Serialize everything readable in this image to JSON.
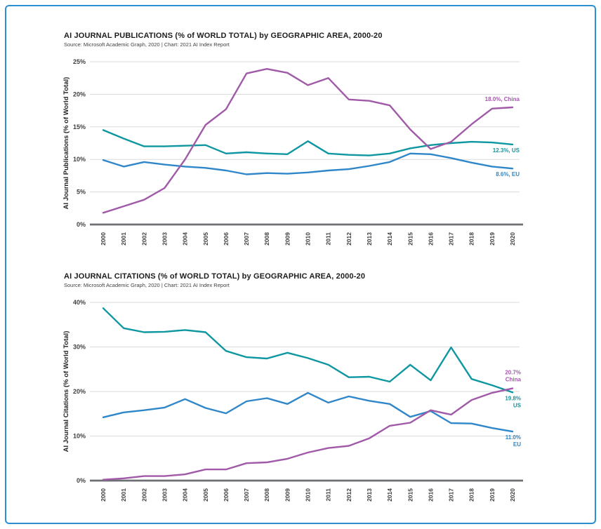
{
  "page": {
    "background": "#ffffff",
    "border_color": "#2b8fd0"
  },
  "chart_data": [
    {
      "type": "line",
      "title": "AI JOURNAL PUBLICATIONS (% of WORLD TOTAL) by GEOGRAPHIC AREA, 2000-20",
      "source": "Source: Microsoft Academic Graph, 2020 | Chart: 2021 AI Index Report",
      "ylabel": "AI Journal Publications (% of World Total)",
      "xlabel": "",
      "x": [
        2000,
        2001,
        2002,
        2003,
        2004,
        2005,
        2006,
        2007,
        2008,
        2009,
        2010,
        2011,
        2012,
        2013,
        2014,
        2015,
        2016,
        2017,
        2018,
        2019,
        2020
      ],
      "ylim": [
        0,
        25
      ],
      "yticks": [
        0,
        5,
        10,
        15,
        20,
        25
      ],
      "ytick_labels": [
        "0%",
        "5%",
        "10%",
        "15%",
        "20%",
        "25%"
      ],
      "grid": true,
      "legend_position": "line-end-labels-right",
      "series": [
        {
          "name": "China",
          "color": "#a05aa8",
          "end_label": [
            "18.0%, China"
          ],
          "values": [
            1.8,
            2.8,
            3.8,
            5.6,
            10.0,
            15.3,
            17.7,
            23.2,
            23.9,
            23.3,
            21.4,
            22.5,
            19.2,
            19.0,
            18.3,
            14.6,
            11.6,
            12.7,
            15.4,
            17.8,
            18.0
          ]
        },
        {
          "name": "US",
          "color": "#0f97a1",
          "end_label": [
            "12.3%, US"
          ],
          "values": [
            14.5,
            13.2,
            12.0,
            12.0,
            12.1,
            12.2,
            10.9,
            11.1,
            10.9,
            10.8,
            12.8,
            10.9,
            10.7,
            10.6,
            10.9,
            11.7,
            12.2,
            12.5,
            12.7,
            12.6,
            12.3
          ]
        },
        {
          "name": "EU",
          "color": "#2f87c9",
          "end_label": [
            "8.6%, EU"
          ],
          "values": [
            9.9,
            8.9,
            9.6,
            9.2,
            8.9,
            8.7,
            8.3,
            7.7,
            7.9,
            7.8,
            8.0,
            8.3,
            8.5,
            9.0,
            9.6,
            10.9,
            10.8,
            10.2,
            9.5,
            8.9,
            8.6
          ]
        }
      ]
    },
    {
      "type": "line",
      "title": "AI JOURNAL CITATIONS (% of WORLD TOTAL) by GEOGRAPHIC AREA, 2000-20",
      "source": "Source: Microsoft Academic Graph, 2020 | Chart: 2021 AI Index Report",
      "ylabel": "AI Journal Citations (% of World Total)",
      "xlabel": "",
      "x": [
        2000,
        2001,
        2002,
        2003,
        2004,
        2005,
        2006,
        2007,
        2008,
        2009,
        2010,
        2011,
        2012,
        2013,
        2014,
        2015,
        2016,
        2017,
        2018,
        2019,
        2020
      ],
      "ylim": [
        0,
        40
      ],
      "yticks": [
        0,
        10,
        20,
        30,
        40
      ],
      "ytick_labels": [
        "0%",
        "10%",
        "20%",
        "30%",
        "40%"
      ],
      "grid": true,
      "legend_position": "line-end-labels-right",
      "series": [
        {
          "name": "China",
          "color": "#a05aa8",
          "end_label": [
            "20.7%",
            "China"
          ],
          "values": [
            0.2,
            0.5,
            1.0,
            1.0,
            1.4,
            2.5,
            2.5,
            3.9,
            4.1,
            4.9,
            6.3,
            7.3,
            7.8,
            9.5,
            12.3,
            13.0,
            15.8,
            14.8,
            18.1,
            19.7,
            20.7
          ]
        },
        {
          "name": "US",
          "color": "#0f97a1",
          "end_label": [
            "19.8%",
            "US"
          ],
          "values": [
            38.7,
            34.2,
            33.3,
            33.4,
            33.8,
            33.3,
            29.1,
            27.7,
            27.4,
            28.7,
            27.5,
            26.0,
            23.2,
            23.3,
            22.2,
            26.0,
            22.5,
            29.9,
            22.8,
            21.4,
            19.8
          ]
        },
        {
          "name": "EU",
          "color": "#2f87c9",
          "end_label": [
            "11.0%",
            "EU"
          ],
          "values": [
            14.2,
            15.3,
            15.8,
            16.4,
            18.3,
            16.3,
            15.1,
            17.8,
            18.5,
            17.2,
            19.7,
            17.5,
            18.9,
            17.9,
            17.2,
            14.3,
            15.6,
            12.9,
            12.8,
            11.8,
            11.0
          ]
        }
      ]
    }
  ]
}
